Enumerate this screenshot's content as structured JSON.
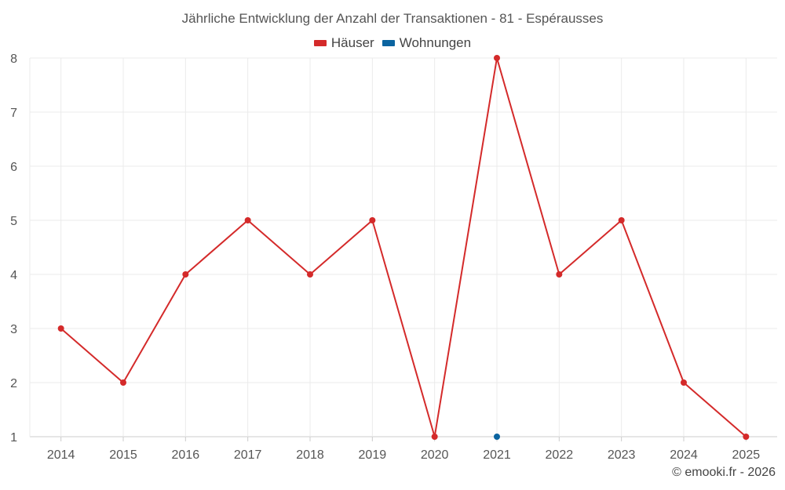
{
  "chart_data": {
    "type": "line",
    "title": "Jährliche Entwicklung der Anzahl der Transaktionen - 81 - Espérausses",
    "categories": [
      "2014",
      "2015",
      "2016",
      "2017",
      "2018",
      "2019",
      "2020",
      "2021",
      "2022",
      "2023",
      "2024",
      "2025"
    ],
    "ylim": [
      1,
      8
    ],
    "yticks": [
      1,
      2,
      3,
      4,
      5,
      6,
      7,
      8
    ],
    "grid": true,
    "legend_position": "top-center",
    "series": [
      {
        "name": "Häuser",
        "color": "#d42a2a",
        "values": [
          3,
          2,
          4,
          5,
          4,
          5,
          1,
          8,
          4,
          5,
          2,
          1
        ]
      },
      {
        "name": "Wohnungen",
        "color": "#0b64a0",
        "values": [
          null,
          null,
          null,
          null,
          null,
          null,
          null,
          1,
          null,
          null,
          null,
          null
        ]
      }
    ]
  },
  "credit": "© emooki.fr - 2026"
}
